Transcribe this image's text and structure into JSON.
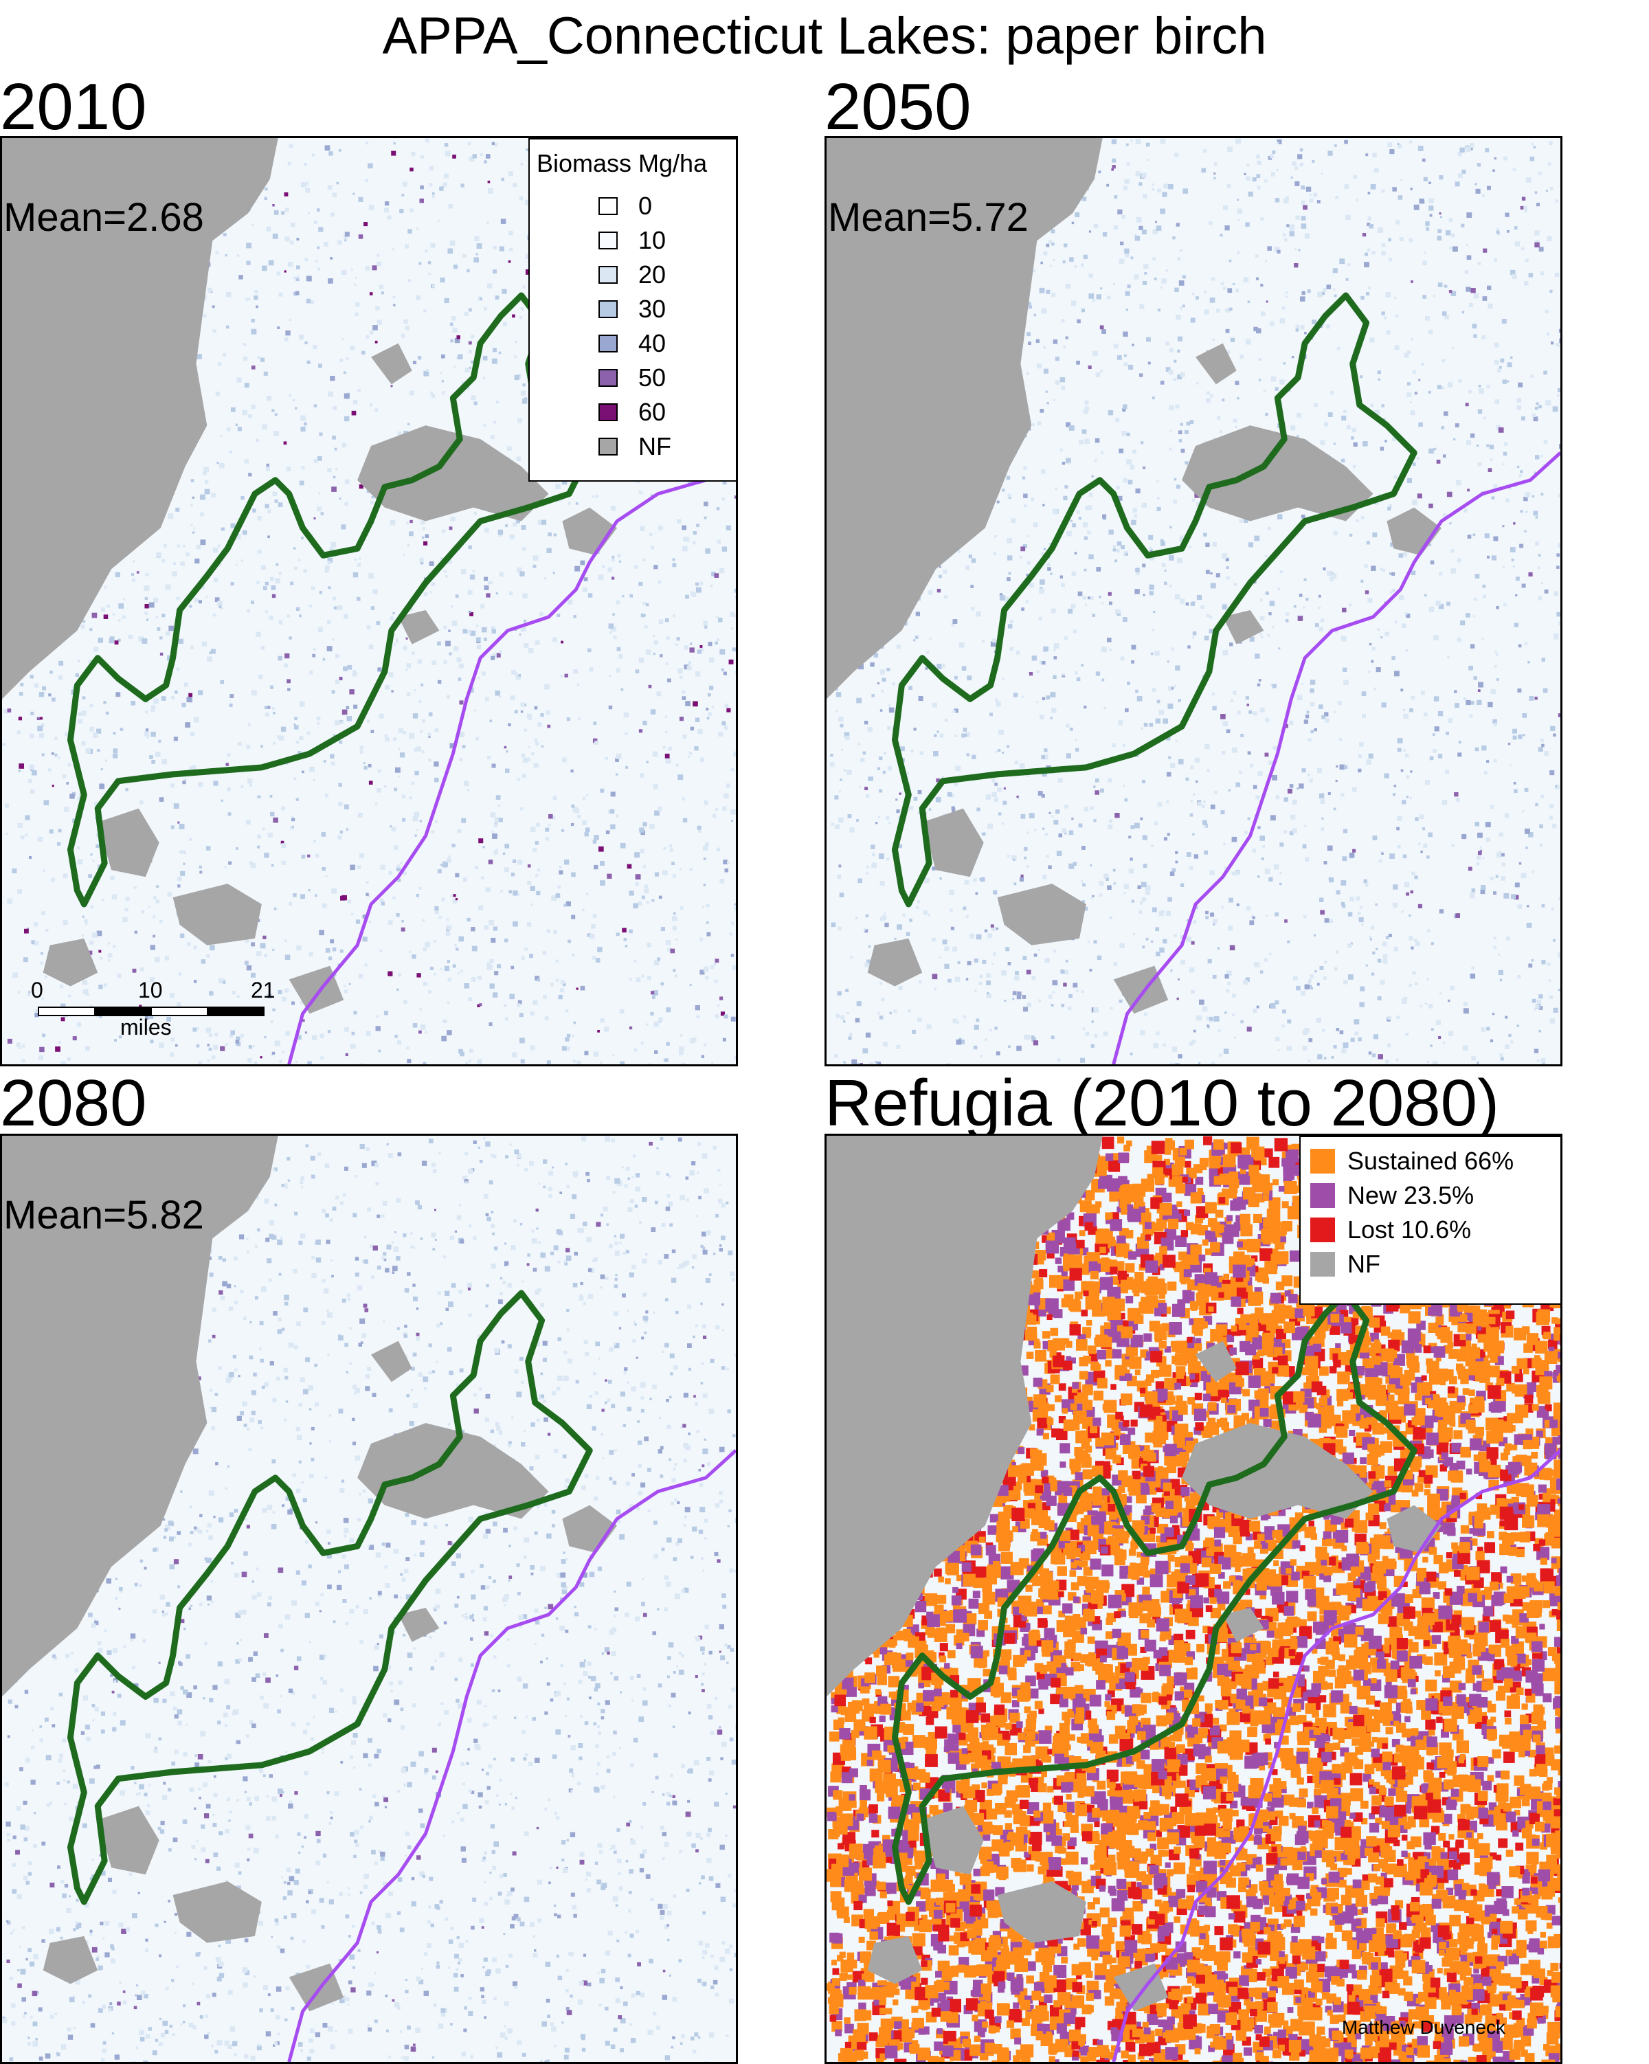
{
  "title": "APPA_Connecticut Lakes: paper birch",
  "colors": {
    "nonforest": "#a6a6a6",
    "trail": "#1e6b1e",
    "border": "#a64cf0",
    "sustained": "#ff8c1a",
    "new": "#9e4ea8",
    "lost": "#e31a1c"
  },
  "panels": [
    {
      "label": "2010",
      "mean": "Mean=2.68"
    },
    {
      "label": "2050",
      "mean": "Mean=5.72"
    },
    {
      "label": "2080",
      "mean": "Mean=5.82"
    },
    {
      "label": "Refugia (2010 to 2080)",
      "mean": ""
    }
  ],
  "biomass_legend": {
    "title": "Biomass Mg/ha",
    "items": [
      {
        "label": "0",
        "color": "#ffffff"
      },
      {
        "label": "10",
        "color": "#f7fbff"
      },
      {
        "label": "20",
        "color": "#dbe8f4"
      },
      {
        "label": "30",
        "color": "#b7cbe4"
      },
      {
        "label": "40",
        "color": "#9aa7d0"
      },
      {
        "label": "50",
        "color": "#8d62ad"
      },
      {
        "label": "60",
        "color": "#7a0f74"
      },
      {
        "label": "NF",
        "color": "#a6a6a6"
      }
    ]
  },
  "refugia_legend": {
    "items": [
      {
        "label": "Sustained 66%",
        "color": "#ff8c1a"
      },
      {
        "label": "New 23.5%",
        "color": "#9e4ea8"
      },
      {
        "label": "Lost 10.6%",
        "color": "#e31a1c"
      },
      {
        "label": "NF",
        "color": "#a6a6a6"
      }
    ]
  },
  "scalebar": {
    "ticks": [
      "0",
      "10",
      "21"
    ],
    "unit": "miles"
  },
  "credit": "Matthew Duveneck"
}
